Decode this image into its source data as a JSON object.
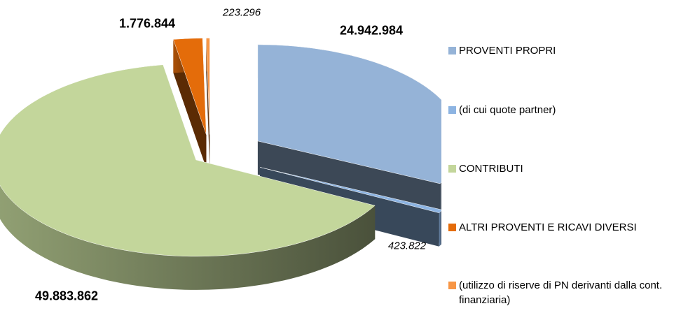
{
  "chart_data": {
    "type": "pie",
    "categories": [
      "PROVENTI PROPRI",
      "(di cui quote partner)",
      "CONTRIBUTI",
      "ALTRI PROVENTI E RICAVI DIVERSI",
      "(utilizzo di riserve di PN derivanti dalla cont. finanziaria)"
    ],
    "values": [
      24942984,
      423822,
      49883862,
      1776844,
      223296
    ],
    "value_labels": [
      "24.942.984",
      "423.822",
      "49.883.862",
      "1.776.844",
      "223.296"
    ],
    "colors": [
      "#95b3d7",
      "#8db4e2",
      "#c3d69b",
      "#e46c0a",
      "#f79646"
    ],
    "legend": "right"
  }
}
